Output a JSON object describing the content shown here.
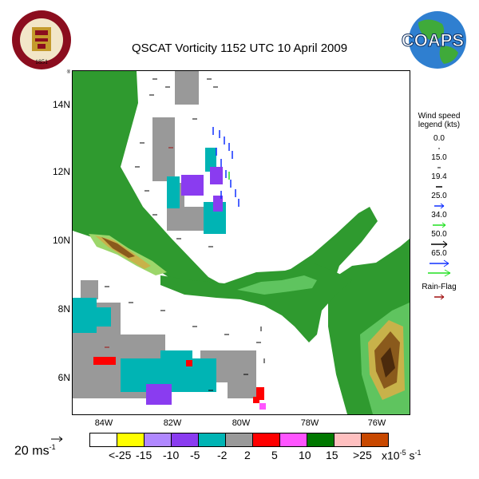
{
  "title": "QSCAT Vorticity 1152 UTC 10 April 2009",
  "logos": {
    "fsu_seal": {
      "text": "FLORIDA STATE UNIVERSITY",
      "year": "1851",
      "mark": "®"
    },
    "coaps": {
      "text": "COAPS"
    }
  },
  "map": {
    "lat_labels": [
      "14N",
      "12N",
      "10N",
      "8N",
      "6N"
    ],
    "lon_labels": [
      "84W",
      "82W",
      "80W",
      "78W",
      "76W"
    ],
    "lat_range": [
      4.9,
      14.9
    ],
    "lon_range": [
      -85.0,
      -75.2
    ],
    "land_color": "#2f9a2f",
    "ocean_color": "#ffffff",
    "terrain_colors": [
      "#2f9a2f",
      "#5fc45f",
      "#9cd66a",
      "#c8b24a",
      "#8a5a1c",
      "#4b2a0c"
    ]
  },
  "wind_legend": {
    "title_line1": "Wind speed",
    "title_line2": "legend (kts)",
    "entries": [
      {
        "value": "0.0",
        "color": "#000000"
      },
      {
        "value": "15.0",
        "color": "#000000"
      },
      {
        "value": "19.4",
        "color": "#000000"
      },
      {
        "value": "25.0",
        "color": "#1030ff"
      },
      {
        "value": "34.0",
        "color": "#20e020"
      },
      {
        "value": "50.0",
        "color": "#000000"
      },
      {
        "value": "65.0",
        "color": "#1030ff"
      }
    ],
    "extra_color": "#20e020"
  },
  "rain_flag": {
    "label": "Rain-Flag",
    "color": "#a01010"
  },
  "reference_vector": {
    "label": "20 ms",
    "exponent": "-1"
  },
  "colorbar": {
    "colors": [
      "#ffffff",
      "#ffff00",
      "#b088ff",
      "#8a3cf0",
      "#00b4b4",
      "#999999",
      "#ff0000",
      "#ff55ff",
      "#007800",
      "#ffc0c0",
      "#c84800"
    ],
    "labels": [
      "<-25",
      "-15",
      "-10",
      "-5",
      "-2",
      "2",
      "5",
      "10",
      "15",
      ">25"
    ],
    "units": "x10",
    "units_exp": "-5",
    "units_tail": "s",
    "units_tail_exp": "-1"
  }
}
